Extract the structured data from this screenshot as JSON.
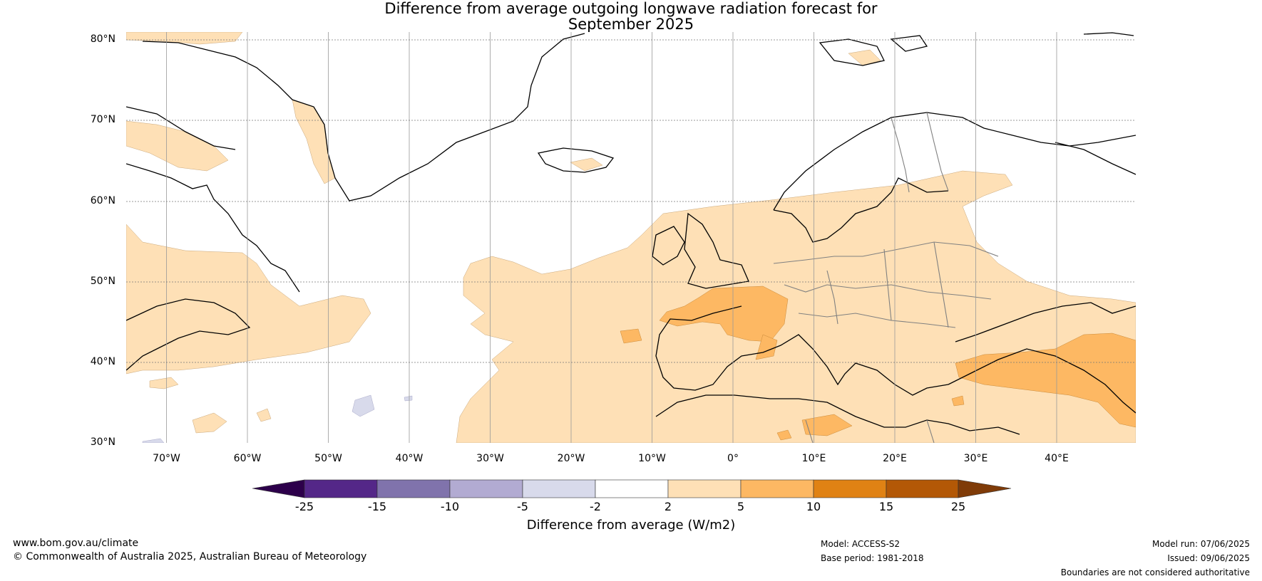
{
  "title_line1": "Difference from average outgoing longwave radiation forecast for",
  "title_line2": "September 2025",
  "lat_labels": [
    "80°N",
    "70°N",
    "60°N",
    "50°N",
    "40°N",
    "30°N"
  ],
  "lon_labels": [
    "70°W",
    "60°W",
    "50°W",
    "40°W",
    "30°W",
    "20°W",
    "10°W",
    "0°",
    "10°E",
    "20°E",
    "30°E",
    "40°E"
  ],
  "colorbar": {
    "ticks": [
      "-25",
      "-15",
      "-10",
      "-5",
      "-2",
      "2",
      "5",
      "10",
      "15",
      "25"
    ],
    "colors": [
      "#2d004b",
      "#542788",
      "#8073ac",
      "#b2abd2",
      "#d8daeb",
      "#ffffff",
      "#fee0b6",
      "#fdb863",
      "#e08214",
      "#b35806",
      "#7f3b08"
    ],
    "label": "Difference from average (W/m2)"
  },
  "footer": {
    "url": "www.bom.gov.au/climate",
    "copyright": "© Commonwealth of Australia 2025, Australian Bureau of Meteorology",
    "model": "Model: ACCESS-S2",
    "base_period": "Base period: 1981-2018",
    "model_run": "Model run: 07/06/2025",
    "issued": "Issued: 09/06/2025",
    "disclaimer": "Boundaries are not considered authoritative"
  }
}
